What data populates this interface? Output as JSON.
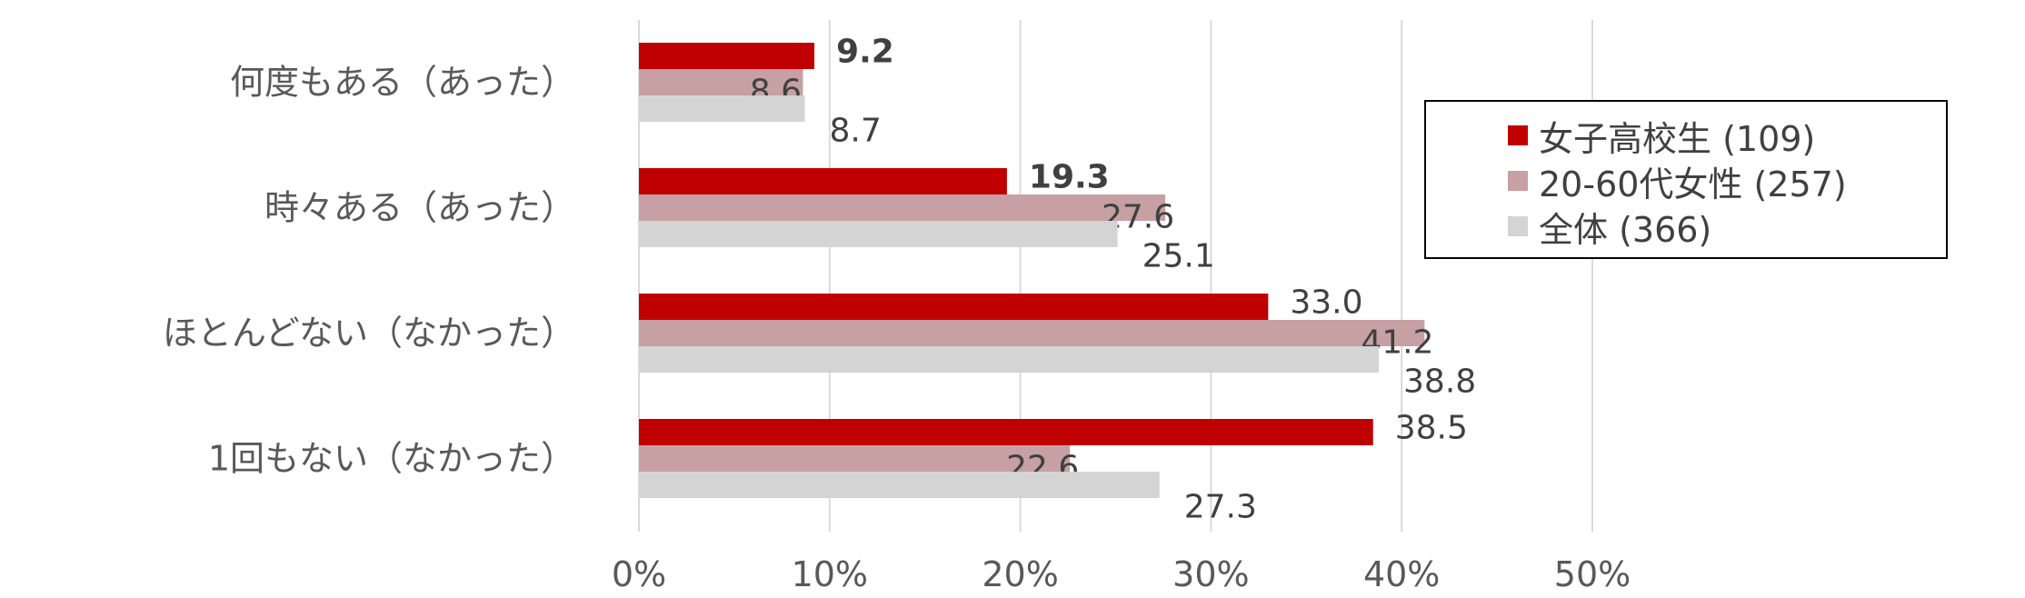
{
  "chart_data": {
    "type": "bar",
    "orientation": "horizontal",
    "categories": [
      "何度もある（あった）",
      "時々ある（あった）",
      "ほとんどない（なかった）",
      "1回もない（なかった）"
    ],
    "series": [
      {
        "name": "女子高校生 (109)",
        "color": "#C00000",
        "values": [
          9.2,
          19.3,
          33.0,
          38.5
        ],
        "label_color": "#C00000",
        "label_bold": [
          true,
          true,
          false,
          false
        ]
      },
      {
        "name": "20-60代女性 (257)",
        "color": "#C6A0A3",
        "values": [
          8.6,
          27.6,
          41.2,
          22.6
        ]
      },
      {
        "name": "全体 (366)",
        "color": "#D4D4D4",
        "values": [
          8.7,
          25.1,
          38.8,
          27.3
        ]
      }
    ],
    "value_labels": [
      [
        "9.2",
        "19.3",
        "33.0",
        "38.5"
      ],
      [
        "8.6",
        "27.6",
        "41.2",
        "22.6"
      ],
      [
        "8.7",
        "25.1",
        "38.8",
        "27.3"
      ]
    ],
    "xlim": [
      0,
      50
    ],
    "xticks": [
      "0%",
      "10%",
      "20%",
      "30%",
      "40%",
      "50%"
    ],
    "grid": true,
    "legend_position": "right"
  }
}
